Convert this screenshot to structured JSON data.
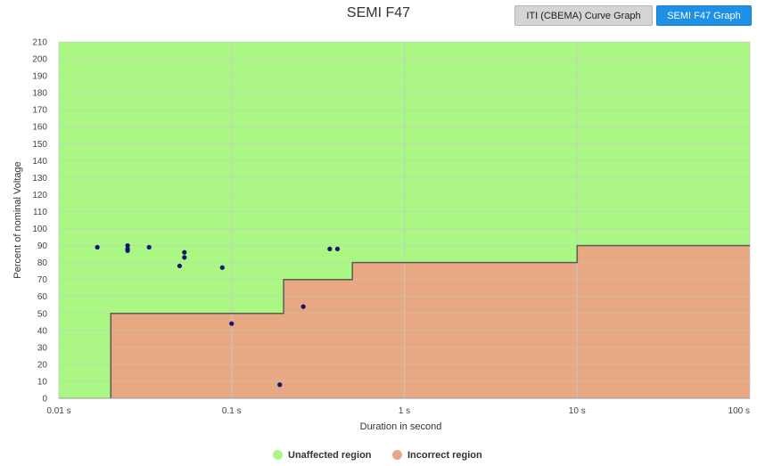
{
  "title": "SEMI F47",
  "buttons": {
    "iti": "ITI (CBEMA) Curve Graph",
    "semi": "SEMI F47 Graph"
  },
  "colors": {
    "unaffected": "#aaf783",
    "incorrect": "#e7a883",
    "boundary": "#5a5a5a",
    "point": "#0f1573",
    "grid": "#c8c8c8",
    "active_button": "#1e90e6"
  },
  "chart_data": {
    "type": "scatter",
    "title": "SEMI F47",
    "xlabel": "Duration in second",
    "ylabel": "Percent of nominal Voltage",
    "x_scale": "log",
    "xlim": [
      0.01,
      100
    ],
    "ylim": [
      0,
      210
    ],
    "x_ticks": [
      {
        "value": 0.01,
        "label": "0.01 s"
      },
      {
        "value": 0.1,
        "label": "0.1 s"
      },
      {
        "value": 1,
        "label": "1 s"
      },
      {
        "value": 10,
        "label": "10 s"
      },
      {
        "value": 100,
        "label": "100 s"
      }
    ],
    "y_ticks": [
      {
        "value": 0,
        "label": "0"
      },
      {
        "value": 10,
        "label": "10"
      },
      {
        "value": 20,
        "label": "20"
      },
      {
        "value": 30,
        "label": "30"
      },
      {
        "value": 40,
        "label": "40"
      },
      {
        "value": 50,
        "label": "50"
      },
      {
        "value": 60,
        "label": "60"
      },
      {
        "value": 70,
        "label": "70"
      },
      {
        "value": 80,
        "label": "80"
      },
      {
        "value": 90,
        "label": "90"
      },
      {
        "value": 100,
        "label": "100"
      },
      {
        "value": 110,
        "label": "110"
      },
      {
        "value": 120,
        "label": "120"
      },
      {
        "value": 130,
        "label": "130"
      },
      {
        "value": 140,
        "label": "140"
      },
      {
        "value": 150,
        "label": "150"
      },
      {
        "value": 160,
        "label": "160"
      },
      {
        "value": 170,
        "label": "170"
      },
      {
        "value": 180,
        "label": "180"
      },
      {
        "value": 190,
        "label": "190"
      },
      {
        "value": 200,
        "label": "200"
      },
      {
        "value": 210,
        "label": "210"
      }
    ],
    "grid": true,
    "boundary": [
      [
        0.02,
        0
      ],
      [
        0.02,
        50
      ],
      [
        0.2,
        50
      ],
      [
        0.2,
        70
      ],
      [
        0.5,
        70
      ],
      [
        0.5,
        80
      ],
      [
        10,
        80
      ],
      [
        10,
        90
      ],
      [
        100,
        90
      ]
    ],
    "regions": [
      {
        "name": "Unaffected region",
        "color": "#aaf783"
      },
      {
        "name": "Incorrect region",
        "color": "#e7a883"
      }
    ],
    "points": [
      {
        "x": 0.0167,
        "y": 89
      },
      {
        "x": 0.025,
        "y": 90
      },
      {
        "x": 0.025,
        "y": 88
      },
      {
        "x": 0.025,
        "y": 87
      },
      {
        "x": 0.0333,
        "y": 89
      },
      {
        "x": 0.05,
        "y": 78
      },
      {
        "x": 0.0533,
        "y": 86
      },
      {
        "x": 0.0533,
        "y": 83
      },
      {
        "x": 0.0883,
        "y": 77
      },
      {
        "x": 0.1,
        "y": 44
      },
      {
        "x": 0.19,
        "y": 8
      },
      {
        "x": 0.26,
        "y": 54
      },
      {
        "x": 0.37,
        "y": 88
      },
      {
        "x": 0.41,
        "y": 88
      }
    ]
  },
  "legend": {
    "items": [
      {
        "label": "Unaffected region",
        "color": "#aaf783"
      },
      {
        "label": "Incorrect region",
        "color": "#e7a883"
      }
    ]
  }
}
